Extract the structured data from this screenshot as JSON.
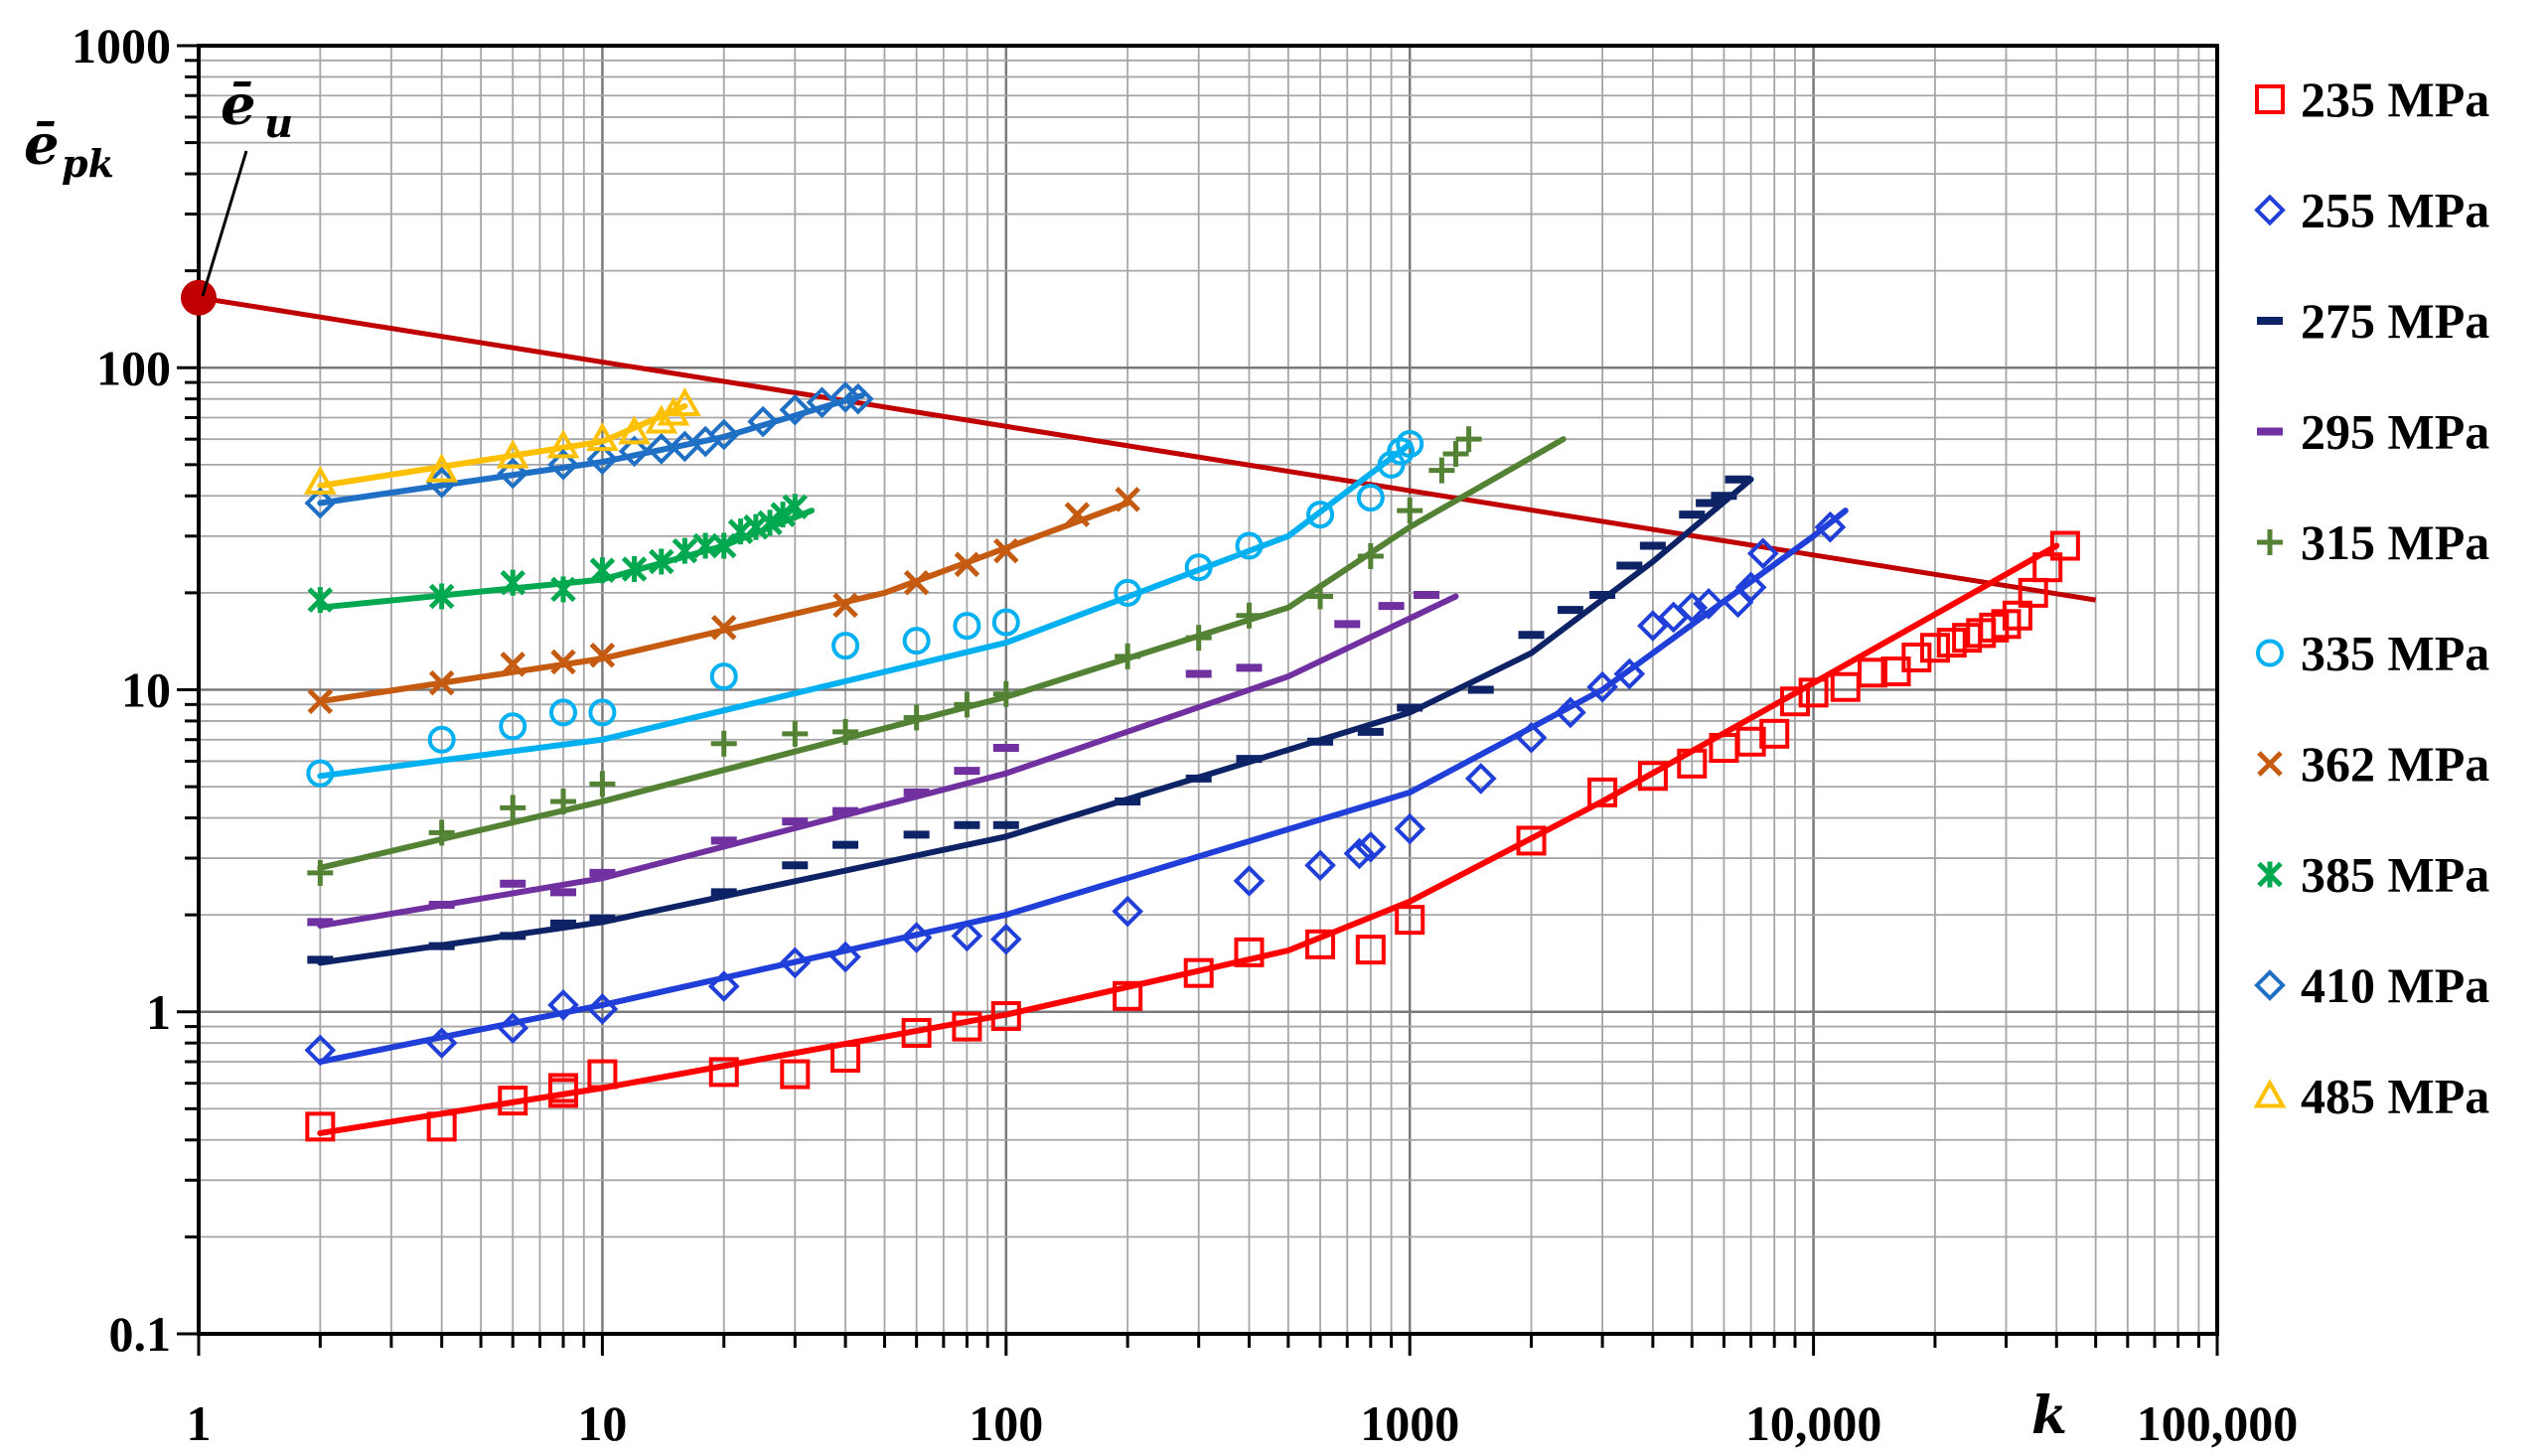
{
  "chart_data": {
    "type": "scatter",
    "x_scale": "log",
    "y_scale": "log",
    "xlim": [
      1,
      100000
    ],
    "ylim": [
      0.1,
      1000
    ],
    "grid": true,
    "legend_position": "right",
    "xlabel": "k",
    "ylabel_main": "ē",
    "ylabel_sub": "pk",
    "x_tick_labels": [
      {
        "value": 1,
        "label": "1"
      },
      {
        "value": 10,
        "label": "10"
      },
      {
        "value": 100,
        "label": "100"
      },
      {
        "value": 1000,
        "label": "1000"
      },
      {
        "value": 10000,
        "label": "10,000"
      },
      {
        "value": 100000,
        "label": "100,000"
      }
    ],
    "y_tick_labels": [
      {
        "value": 0.1,
        "label": "0.1"
      },
      {
        "value": 1,
        "label": "1"
      },
      {
        "value": 10,
        "label": "10"
      },
      {
        "value": 100,
        "label": "100"
      },
      {
        "value": 1000,
        "label": "1000"
      }
    ],
    "limit_line": {
      "name": "ē_u",
      "label_main": "ē",
      "label_sub": "u",
      "color": "#c00000",
      "start": [
        1,
        165
      ],
      "end": [
        50000,
        19
      ],
      "marker_at": [
        1,
        165
      ]
    },
    "series": [
      {
        "name": "235 MPa",
        "marker": "square",
        "color": "#ff0000",
        "points": [
          [
            2,
            0.44
          ],
          [
            4,
            0.44
          ],
          [
            6,
            0.53
          ],
          [
            8,
            0.56
          ],
          [
            8,
            0.58
          ],
          [
            10,
            0.64
          ],
          [
            20,
            0.65
          ],
          [
            30,
            0.64
          ],
          [
            40,
            0.72
          ],
          [
            60,
            0.86
          ],
          [
            80,
            0.9
          ],
          [
            100,
            0.97
          ],
          [
            200,
            1.12
          ],
          [
            300,
            1.32
          ],
          [
            400,
            1.53
          ],
          [
            600,
            1.62
          ],
          [
            800,
            1.56
          ],
          [
            1000,
            1.93
          ],
          [
            2000,
            3.4
          ],
          [
            3000,
            4.8
          ],
          [
            4000,
            5.4
          ],
          [
            5000,
            5.9
          ],
          [
            6000,
            6.6
          ],
          [
            7000,
            6.9
          ],
          [
            8000,
            7.3
          ],
          [
            9000,
            9.2
          ],
          [
            10000,
            9.8
          ],
          [
            12000,
            10.2
          ],
          [
            14000,
            11.3
          ],
          [
            16000,
            11.4
          ],
          [
            18000,
            12.6
          ],
          [
            20000,
            13.5
          ],
          [
            22000,
            14
          ],
          [
            24000,
            14.5
          ],
          [
            26000,
            15
          ],
          [
            28000,
            15.6
          ],
          [
            30000,
            16
          ],
          [
            32000,
            17
          ],
          [
            35000,
            20
          ],
          [
            38000,
            24
          ],
          [
            42000,
            28
          ]
        ],
        "fit": [
          [
            2,
            0.42
          ],
          [
            10,
            0.58
          ],
          [
            100,
            0.98
          ],
          [
            500,
            1.55
          ],
          [
            1000,
            2.2
          ],
          [
            3000,
            4.5
          ],
          [
            10000,
            10.5
          ],
          [
            40000,
            28
          ]
        ]
      },
      {
        "name": "255 MPa",
        "marker": "diamond",
        "color": "#1f3fd8",
        "points": [
          [
            2,
            0.76
          ],
          [
            4,
            0.8
          ],
          [
            6,
            0.89
          ],
          [
            8,
            1.05
          ],
          [
            10,
            1.02
          ],
          [
            20,
            1.2
          ],
          [
            30,
            1.42
          ],
          [
            40,
            1.48
          ],
          [
            60,
            1.7
          ],
          [
            80,
            1.72
          ],
          [
            100,
            1.68
          ],
          [
            200,
            2.05
          ],
          [
            400,
            2.55
          ],
          [
            600,
            2.85
          ],
          [
            750,
            3.1
          ],
          [
            800,
            3.25
          ],
          [
            1000,
            3.7
          ],
          [
            1500,
            5.3
          ],
          [
            2000,
            7.1
          ],
          [
            2500,
            8.5
          ],
          [
            3000,
            10.2
          ],
          [
            3500,
            11.2
          ],
          [
            4000,
            15.8
          ],
          [
            4500,
            16.8
          ],
          [
            5000,
            18
          ],
          [
            5500,
            18.5
          ],
          [
            6500,
            18.7
          ],
          [
            7000,
            20.8
          ],
          [
            7500,
            26.5
          ],
          [
            11000,
            32
          ]
        ],
        "fit": [
          [
            2,
            0.7
          ],
          [
            10,
            1.05
          ],
          [
            100,
            2.0
          ],
          [
            1000,
            4.8
          ],
          [
            3000,
            10
          ],
          [
            10000,
            30
          ],
          [
            12000,
            36
          ]
        ]
      },
      {
        "name": "275 MPa",
        "marker": "dash",
        "color": "#0d2366",
        "points": [
          [
            2,
            1.45
          ],
          [
            4,
            1.6
          ],
          [
            6,
            1.72
          ],
          [
            8,
            1.88
          ],
          [
            10,
            1.95
          ],
          [
            20,
            2.35
          ],
          [
            30,
            2.85
          ],
          [
            40,
            3.3
          ],
          [
            60,
            3.55
          ],
          [
            80,
            3.8
          ],
          [
            100,
            3.8
          ],
          [
            200,
            4.5
          ],
          [
            300,
            5.3
          ],
          [
            400,
            6.1
          ],
          [
            600,
            6.9
          ],
          [
            800,
            7.4
          ],
          [
            1000,
            8.8
          ],
          [
            1500,
            10
          ],
          [
            2000,
            14.8
          ],
          [
            2500,
            17.7
          ],
          [
            3000,
            19.7
          ],
          [
            3500,
            24.3
          ],
          [
            4000,
            28
          ],
          [
            5000,
            35
          ],
          [
            5500,
            38
          ],
          [
            6000,
            40
          ],
          [
            6500,
            45
          ]
        ],
        "fit": [
          [
            2,
            1.42
          ],
          [
            10,
            1.9
          ],
          [
            100,
            3.5
          ],
          [
            1000,
            8.5
          ],
          [
            2000,
            13
          ],
          [
            4000,
            25
          ],
          [
            7000,
            45
          ]
        ]
      },
      {
        "name": "295 MPa",
        "marker": "dash",
        "color": "#7030a0",
        "points": [
          [
            2,
            1.9
          ],
          [
            4,
            2.15
          ],
          [
            6,
            2.5
          ],
          [
            8,
            2.35
          ],
          [
            10,
            2.7
          ],
          [
            20,
            3.4
          ],
          [
            30,
            3.9
          ],
          [
            40,
            4.2
          ],
          [
            60,
            4.8
          ],
          [
            80,
            5.6
          ],
          [
            100,
            6.6
          ],
          [
            300,
            11.2
          ],
          [
            400,
            11.7
          ],
          [
            700,
            16
          ],
          [
            900,
            18.2
          ],
          [
            1100,
            19.7
          ]
        ],
        "fit": [
          [
            2,
            1.85
          ],
          [
            10,
            2.6
          ],
          [
            100,
            5.5
          ],
          [
            500,
            11
          ],
          [
            1300,
            19.5
          ]
        ]
      },
      {
        "name": "315 MPa",
        "marker": "plus",
        "color": "#548235",
        "points": [
          [
            2,
            2.7
          ],
          [
            4,
            3.6
          ],
          [
            6,
            4.3
          ],
          [
            8,
            4.5
          ],
          [
            10,
            5.1
          ],
          [
            20,
            6.8
          ],
          [
            30,
            7.3
          ],
          [
            40,
            7.4
          ],
          [
            60,
            8.2
          ],
          [
            80,
            9
          ],
          [
            100,
            9.7
          ],
          [
            200,
            12.7
          ],
          [
            300,
            14.5
          ],
          [
            400,
            17
          ],
          [
            600,
            19.5
          ],
          [
            800,
            26
          ],
          [
            1000,
            36
          ],
          [
            1200,
            48
          ],
          [
            1300,
            54
          ],
          [
            1400,
            60
          ]
        ],
        "fit": [
          [
            2,
            2.8
          ],
          [
            10,
            4.5
          ],
          [
            100,
            9.5
          ],
          [
            500,
            18
          ],
          [
            1000,
            32
          ],
          [
            2400,
            60
          ]
        ]
      },
      {
        "name": "335 MPa",
        "marker": "circle",
        "color": "#00b0f0",
        "points": [
          [
            2,
            5.5
          ],
          [
            4,
            7
          ],
          [
            6,
            7.7
          ],
          [
            8,
            8.5
          ],
          [
            10,
            8.5
          ],
          [
            20,
            11
          ],
          [
            40,
            13.7
          ],
          [
            60,
            14.2
          ],
          [
            80,
            15.8
          ],
          [
            100,
            16.2
          ],
          [
            200,
            20
          ],
          [
            300,
            24
          ],
          [
            400,
            28
          ],
          [
            600,
            35
          ],
          [
            800,
            39.5
          ],
          [
            900,
            50
          ],
          [
            950,
            55
          ],
          [
            1000,
            58
          ]
        ],
        "fit": [
          [
            2,
            5.4
          ],
          [
            10,
            7
          ],
          [
            100,
            14
          ],
          [
            500,
            30
          ],
          [
            1000,
            58
          ]
        ]
      },
      {
        "name": "362 MPa",
        "marker": "x",
        "color": "#c55a11",
        "points": [
          [
            2,
            9.2
          ],
          [
            4,
            10.5
          ],
          [
            6,
            12
          ],
          [
            8,
            12.2
          ],
          [
            10,
            12.8
          ],
          [
            20,
            15.6
          ],
          [
            40,
            18.3
          ],
          [
            60,
            21.5
          ],
          [
            80,
            24.5
          ],
          [
            100,
            27
          ],
          [
            150,
            35
          ],
          [
            200,
            39
          ]
        ],
        "fit": [
          [
            2,
            9.2
          ],
          [
            10,
            12.5
          ],
          [
            50,
            20
          ],
          [
            200,
            38
          ]
        ]
      },
      {
        "name": "385 MPa",
        "marker": "asterisk",
        "color": "#00a84f",
        "points": [
          [
            2,
            19
          ],
          [
            4,
            19.5
          ],
          [
            6,
            21.5
          ],
          [
            8,
            20.5
          ],
          [
            10,
            23.5
          ],
          [
            12,
            23.7
          ],
          [
            14,
            25
          ],
          [
            16,
            27
          ],
          [
            18,
            28
          ],
          [
            20,
            28
          ],
          [
            22,
            31
          ],
          [
            24,
            32
          ],
          [
            26,
            33
          ],
          [
            28,
            35
          ],
          [
            30,
            37
          ]
        ],
        "fit": [
          [
            2,
            18
          ],
          [
            10,
            22
          ],
          [
            20,
            28
          ],
          [
            33,
            36
          ]
        ]
      },
      {
        "name": "410 MPa",
        "marker": "diamond",
        "color": "#1f6fc4",
        "points": [
          [
            2,
            38
          ],
          [
            4,
            44
          ],
          [
            6,
            47
          ],
          [
            8,
            50
          ],
          [
            10,
            52
          ],
          [
            12,
            55
          ],
          [
            14,
            56
          ],
          [
            16,
            57
          ],
          [
            18,
            59
          ],
          [
            20,
            62
          ],
          [
            25,
            68
          ],
          [
            30,
            74
          ],
          [
            35,
            78
          ],
          [
            40,
            81
          ],
          [
            43,
            80
          ]
        ],
        "fit": [
          [
            2,
            38
          ],
          [
            10,
            51
          ],
          [
            20,
            61
          ],
          [
            44,
            82
          ]
        ]
      },
      {
        "name": "485 MPa",
        "marker": "triangle",
        "color": "#ffc000",
        "points": [
          [
            2,
            44
          ],
          [
            4,
            48
          ],
          [
            6,
            53
          ],
          [
            8,
            57
          ],
          [
            10,
            60
          ],
          [
            12,
            63
          ],
          [
            14,
            68
          ],
          [
            15,
            72
          ],
          [
            16,
            77
          ]
        ],
        "fit": [
          [
            2,
            43
          ],
          [
            10,
            59
          ],
          [
            16,
            76
          ]
        ]
      }
    ]
  }
}
